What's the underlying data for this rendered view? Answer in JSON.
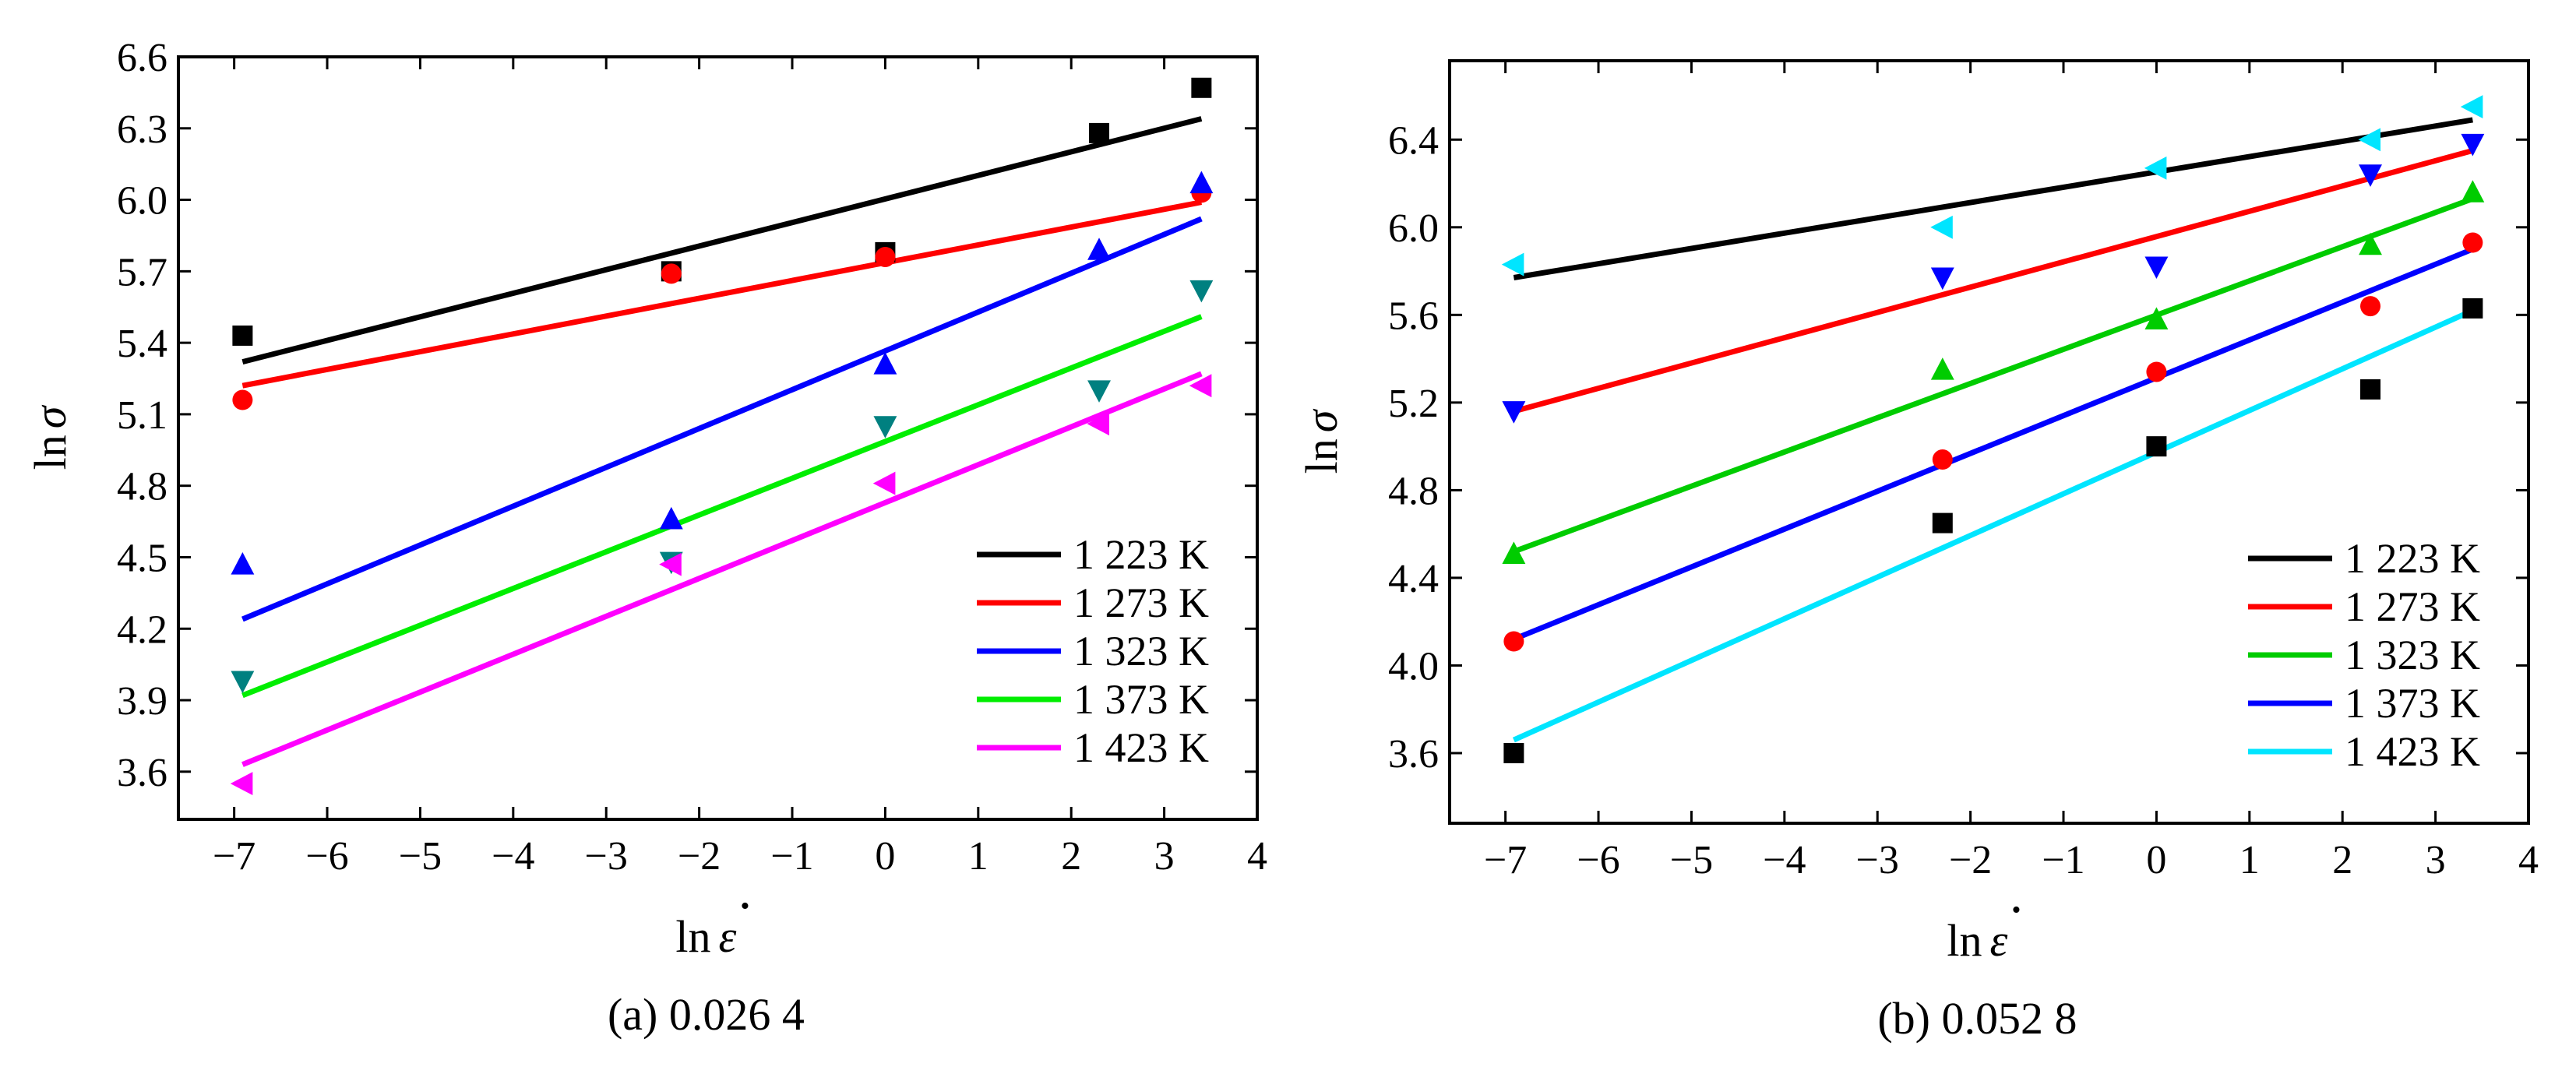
{
  "chart_data": [
    {
      "type": "scatter",
      "caption": "(a) 0.026 4",
      "xlabel_main": "ln",
      "xlabel_symbol": "ε",
      "xlabel_dot": "•",
      "ylabel_main": "ln",
      "ylabel_symbol": "σ",
      "xlim": [
        -7.6,
        4
      ],
      "ylim": [
        3.4,
        6.6
      ],
      "xticks": [
        -7,
        -6,
        -5,
        -4,
        -3,
        -2,
        -1,
        0,
        1,
        2,
        3,
        4
      ],
      "yticks": [
        3.6,
        3.9,
        4.2,
        4.5,
        4.8,
        5.1,
        5.4,
        5.7,
        6.0,
        6.3,
        6.6
      ],
      "ytick_decimals": 1,
      "legend_position": "bottom-right",
      "series": [
        {
          "name": "1 223 K",
          "color": "#000000",
          "marker": "square",
          "x": [
            -6.91,
            -2.3,
            0,
            2.3,
            3.4
          ],
          "y": [
            5.43,
            5.7,
            5.78,
            6.28,
            6.47
          ],
          "fit": [
            [
              -6.91,
              5.32
            ],
            [
              3.4,
              6.34
            ]
          ]
        },
        {
          "name": "1 273 K",
          "color": "#ff0000",
          "marker": "circle",
          "x": [
            -6.91,
            -2.3,
            0,
            3.4
          ],
          "y": [
            5.16,
            5.69,
            5.76,
            6.03
          ],
          "fit": [
            [
              -6.91,
              5.22
            ],
            [
              3.4,
              5.99
            ]
          ]
        },
        {
          "name": "1 323 K",
          "color": "#0000ff",
          "marker": "triangle-up",
          "x": [
            -6.91,
            -2.3,
            0,
            2.3,
            3.4
          ],
          "y": [
            4.47,
            4.66,
            5.31,
            5.79,
            6.07
          ],
          "fit": [
            [
              -6.91,
              4.24
            ],
            [
              3.4,
              5.92
            ]
          ]
        },
        {
          "name": "1 373 K",
          "color": "#008080",
          "line_color": "#00ee00",
          "marker": "triangle-down",
          "x": [
            -6.91,
            -2.3,
            0,
            2.3,
            3.4
          ],
          "y": [
            3.98,
            4.48,
            5.05,
            5.2,
            5.62
          ],
          "fit": [
            [
              -6.91,
              3.92
            ],
            [
              3.4,
              5.51
            ]
          ]
        },
        {
          "name": "1 423 K",
          "color": "#ff00ff",
          "marker": "triangle-left",
          "x": [
            -6.91,
            -2.3,
            0,
            2.3,
            3.4
          ],
          "y": [
            3.55,
            4.47,
            4.81,
            5.06,
            5.22
          ],
          "fit": [
            [
              -6.91,
              3.63
            ],
            [
              3.4,
              5.27
            ]
          ]
        }
      ]
    },
    {
      "type": "scatter",
      "caption": "(b) 0.052 8",
      "xlabel_main": "ln",
      "xlabel_symbol": "ε",
      "xlabel_dot": "•",
      "ylabel_main": "ln",
      "ylabel_symbol": "σ",
      "xlim": [
        -7.6,
        4
      ],
      "ylim": [
        3.28,
        6.76
      ],
      "xticks": [
        -7,
        -6,
        -5,
        -4,
        -3,
        -2,
        -1,
        0,
        1,
        2,
        3,
        4
      ],
      "yticks": [
        3.6,
        4.0,
        4.4,
        4.8,
        5.2,
        5.6,
        6.0,
        6.4
      ],
      "ytick_decimals": 1,
      "legend_position": "bottom-right",
      "series": [
        {
          "name": "1 223 K",
          "color": "#000000",
          "marker": "square",
          "x": [
            -6.91,
            -2.3,
            0,
            2.3,
            3.4
          ],
          "y": [
            3.6,
            4.65,
            5.0,
            5.26,
            5.63
          ],
          "fit": [
            [
              -6.91,
              5.77
            ],
            [
              3.4,
              6.49
            ]
          ]
        },
        {
          "name": "1 273 K",
          "color": "#ff0000",
          "marker": "circle",
          "x": [
            -6.91,
            -2.3,
            0,
            2.3,
            3.4
          ],
          "y": [
            4.11,
            4.94,
            5.34,
            5.64,
            5.93
          ],
          "fit": [
            [
              -6.91,
              5.16
            ],
            [
              3.4,
              6.35
            ]
          ]
        },
        {
          "name": "1 323 K",
          "color": "#00cc00",
          "marker": "triangle-up",
          "x": [
            -6.91,
            -2.3,
            0,
            2.3,
            3.4
          ],
          "y": [
            4.51,
            5.35,
            5.58,
            5.92,
            6.16
          ],
          "fit": [
            [
              -6.91,
              4.52
            ],
            [
              3.4,
              6.13
            ]
          ]
        },
        {
          "name": "1 373 K",
          "color": "#0000ff",
          "marker": "triangle-down",
          "x": [
            -6.91,
            -2.3,
            0,
            2.3,
            3.4
          ],
          "y": [
            5.16,
            5.77,
            5.82,
            6.24,
            6.38
          ],
          "fit": [
            [
              -6.91,
              4.12
            ],
            [
              3.4,
              5.9
            ]
          ]
        },
        {
          "name": "1 423 K",
          "color": "#00e5ff",
          "marker": "triangle-left",
          "x": [
            -6.91,
            -2.3,
            0,
            2.3,
            3.4
          ],
          "y": [
            5.83,
            6.0,
            6.27,
            6.4,
            6.55
          ],
          "fit": [
            [
              -6.91,
              3.66
            ],
            [
              3.4,
              5.62
            ]
          ]
        }
      ]
    }
  ]
}
